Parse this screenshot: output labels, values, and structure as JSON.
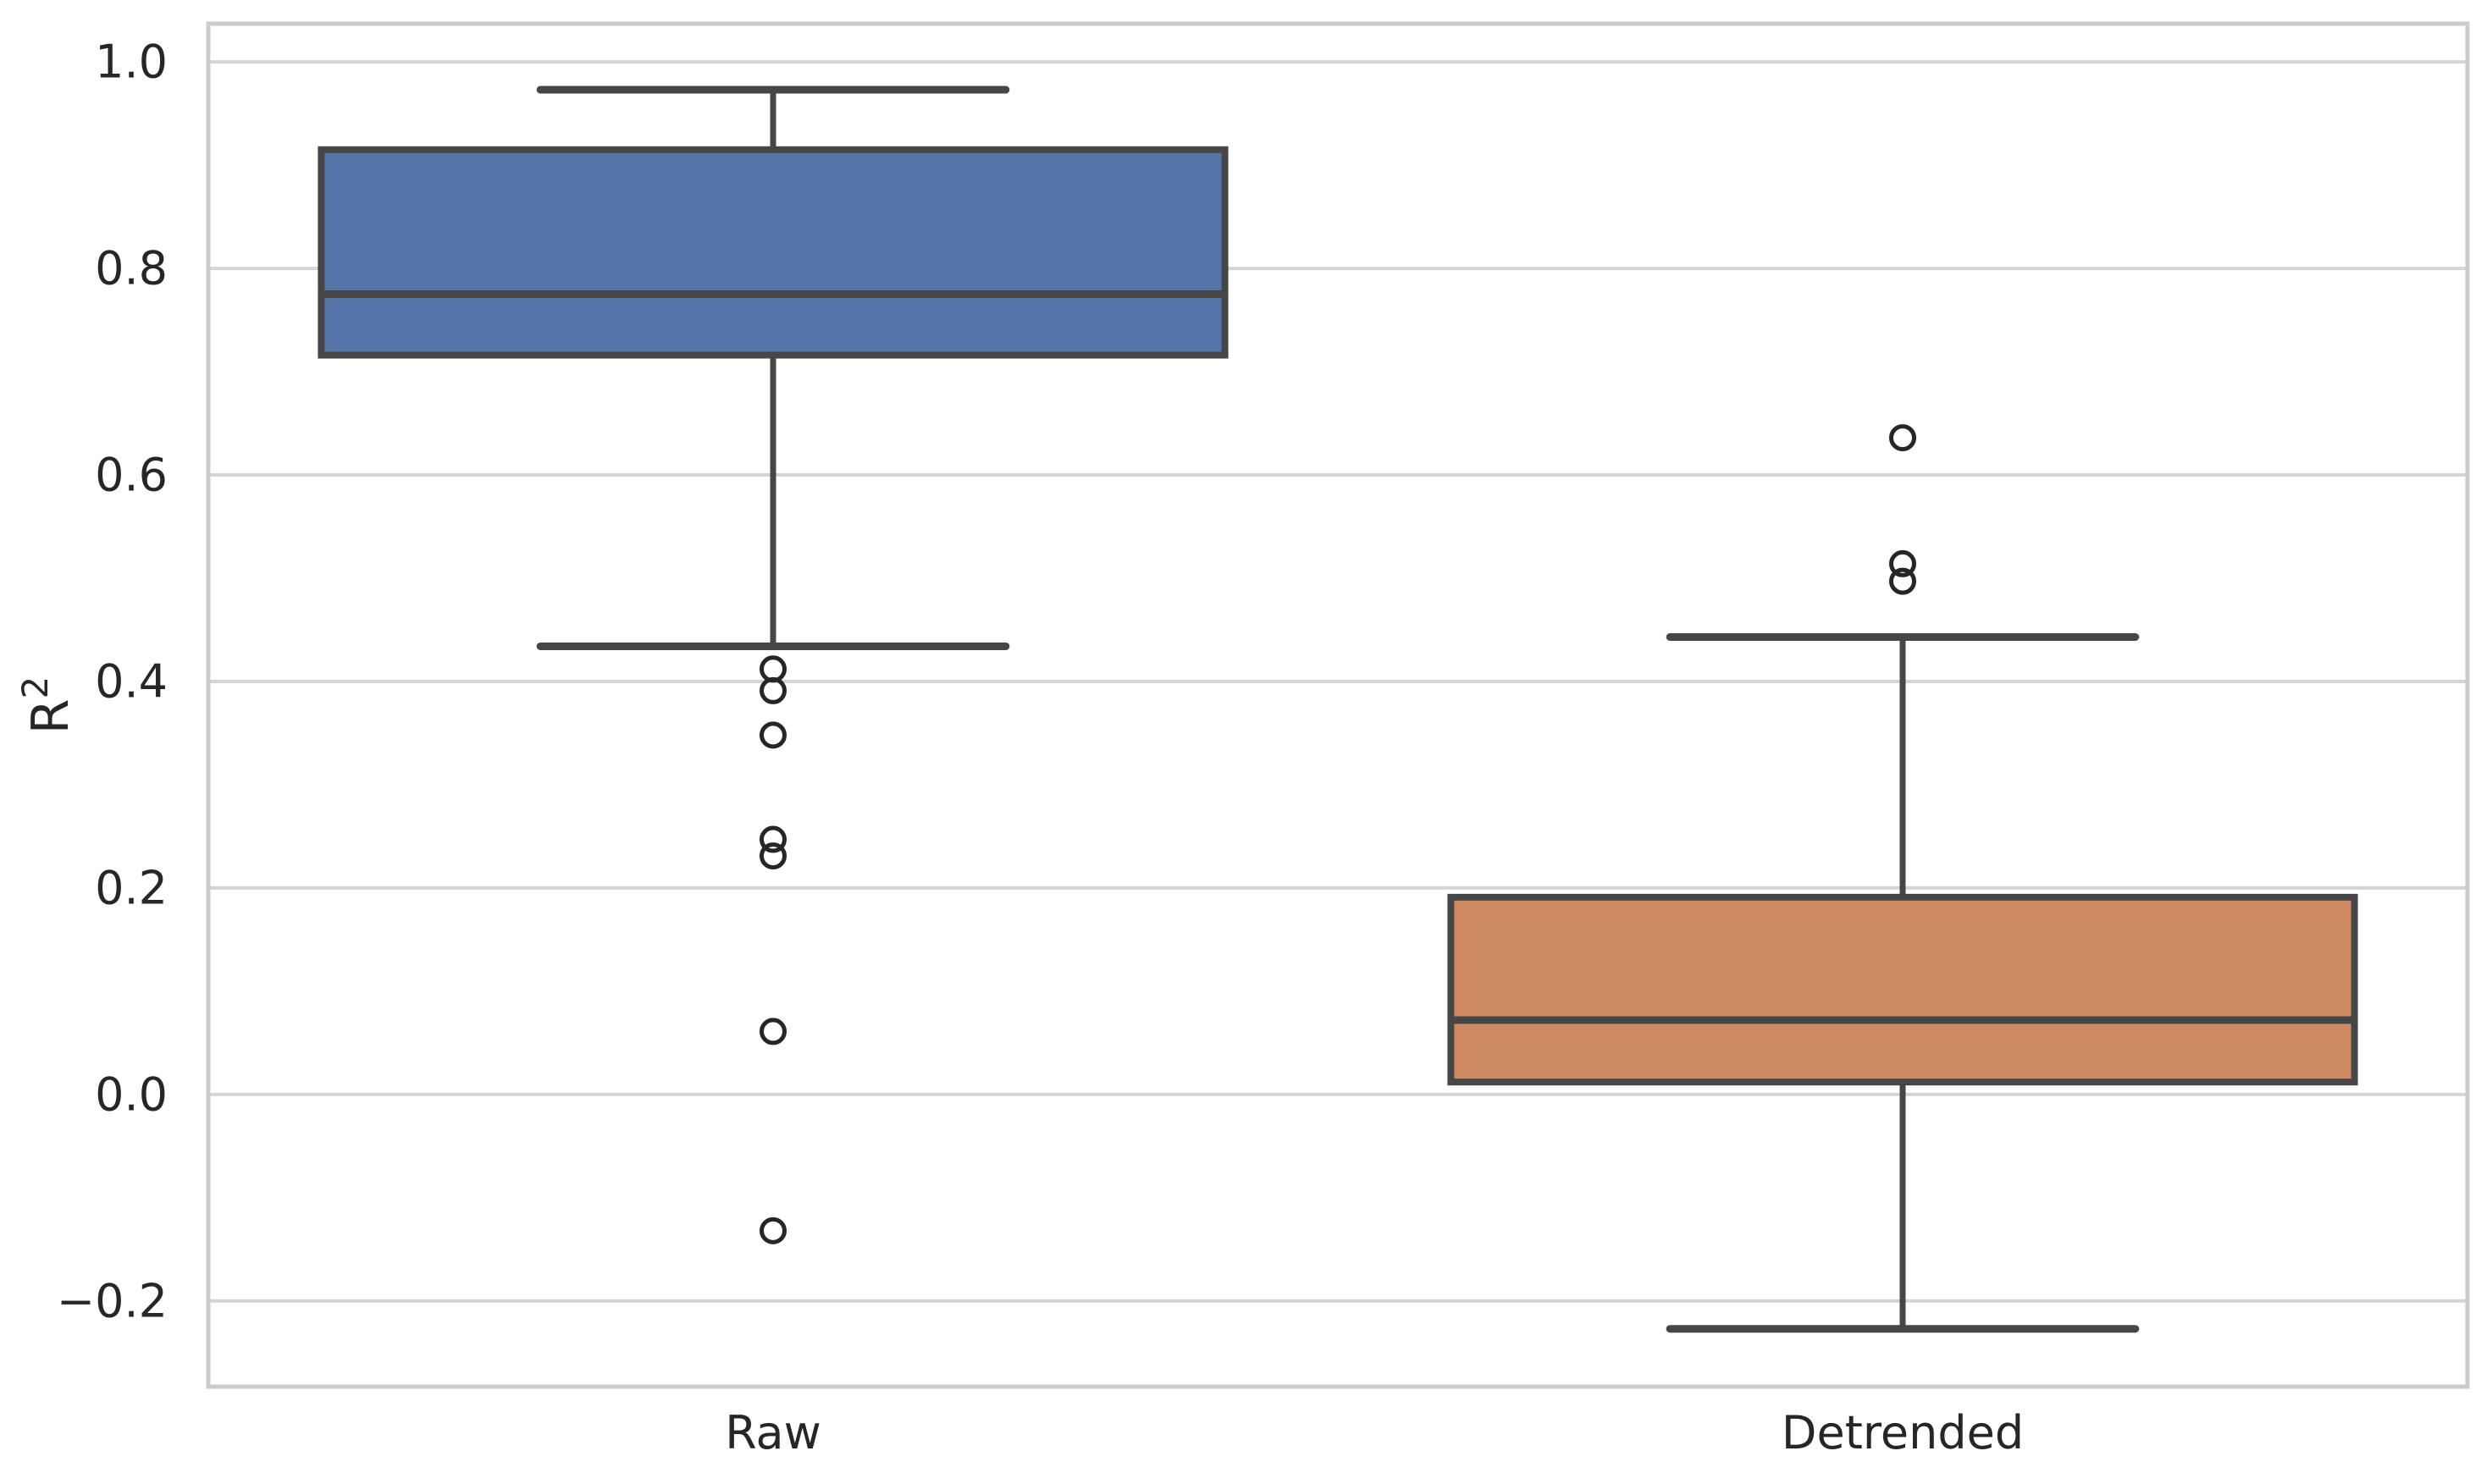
{
  "chart_data": {
    "type": "boxplot",
    "title": "",
    "xlabel": "",
    "ylabel": "R²",
    "categories": [
      "Raw",
      "Detrended"
    ],
    "ylim": [
      -0.283,
      1.037
    ],
    "y_ticks": {
      "values": [
        1.0,
        0.8,
        0.6,
        0.4,
        0.2,
        0.0,
        -0.2
      ],
      "labels": [
        "1.0",
        "0.8",
        "0.6",
        "0.4",
        "0.2",
        "0.0",
        "−0.2"
      ]
    },
    "grid": "horizontal",
    "legend": "none",
    "series": [
      {
        "name": "Raw",
        "fill_color": "#5575A9",
        "stats": {
          "whisker_low": 0.434,
          "q1": 0.716,
          "median": 0.775,
          "q3": 0.915,
          "whisker_high": 0.973
        },
        "outliers": [
          0.412,
          0.391,
          0.348,
          0.247,
          0.231,
          0.061,
          -0.132
        ]
      },
      {
        "name": "Detrended",
        "fill_color": "#CD8A61",
        "stats": {
          "whisker_low": -0.227,
          "q1": 0.012,
          "median": 0.072,
          "q3": 0.191,
          "whisker_high": 0.443
        },
        "outliers": [
          0.636,
          0.514,
          0.497
        ]
      }
    ],
    "style": {
      "line_color": "#464646",
      "flier_color": "#262626",
      "grid_color": "#D4D4D4",
      "spine_color": "#CCCCCC",
      "text_color": "#262626",
      "background": "#FFFFFF",
      "box_width_fraction": 0.4,
      "cap_width_fraction": 0.206
    }
  }
}
